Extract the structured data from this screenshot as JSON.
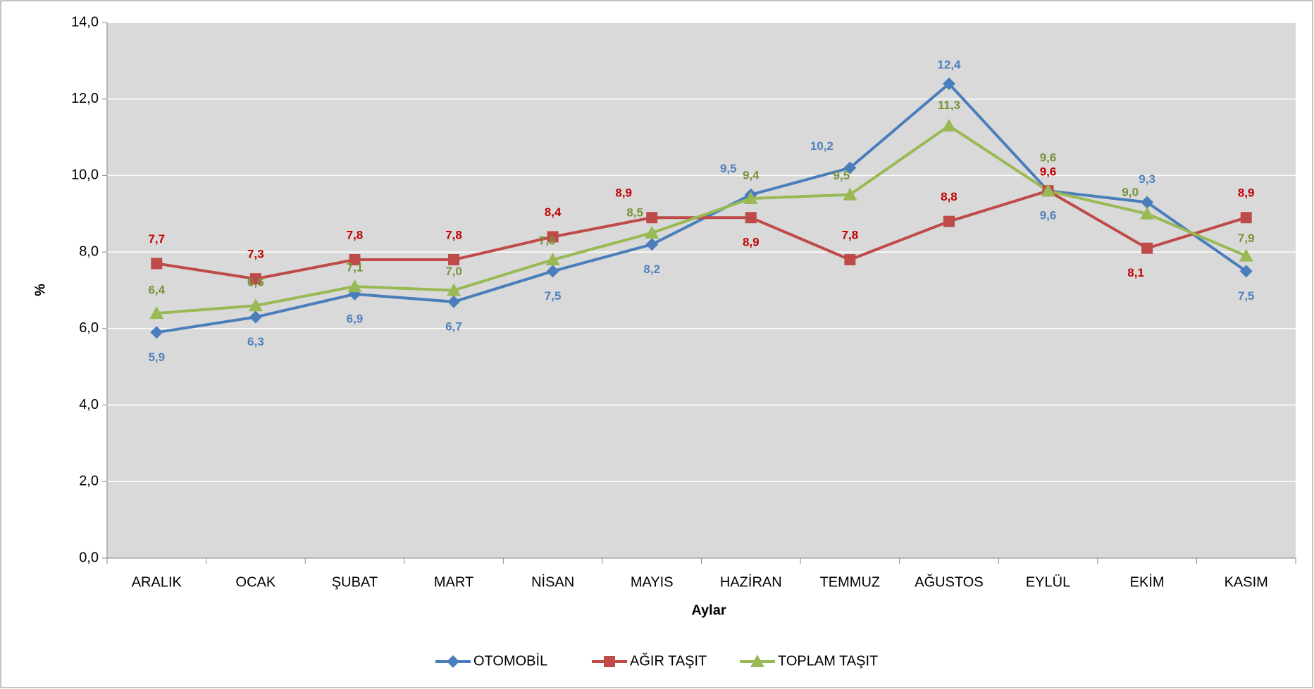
{
  "chart_data": {
    "type": "line",
    "x_label": "Aylar",
    "y_label": "%",
    "categories": [
      "ARALIK",
      "OCAK",
      "ŞUBAT",
      "MART",
      "NİSAN",
      "MAYIS",
      "HAZİRAN",
      "TEMMUZ",
      "AĞUSTOS",
      "EYLÜL",
      "EKİM",
      "KASIM"
    ],
    "series": [
      {
        "name": "OTOMOBİL",
        "color": "#4a7ebb",
        "label_color": "#4f81bd",
        "marker": "diamond",
        "values": [
          5.9,
          6.3,
          6.9,
          6.7,
          7.5,
          8.2,
          9.5,
          10.2,
          12.4,
          9.6,
          9.3,
          7.5
        ],
        "value_labels": [
          "5,9",
          "6,3",
          "6,9",
          "6,7",
          "7,5",
          "8,2",
          "9,5",
          "10,2",
          "12,4",
          "9,6",
          "9,3",
          "7,5"
        ]
      },
      {
        "name": "AĞIR TAŞIT",
        "color": "#be4b48",
        "label_color": "#c00000",
        "marker": "square",
        "values": [
          7.7,
          7.3,
          7.8,
          7.8,
          8.4,
          8.9,
          8.9,
          7.8,
          8.8,
          9.6,
          8.1,
          8.9
        ],
        "value_labels": [
          "7,7",
          "7,3",
          "7,8",
          "7,8",
          "8,4",
          "8,9",
          "8,9",
          "7,8",
          "8,8",
          "9,6",
          "8,1",
          "8,9"
        ]
      },
      {
        "name": "TOPLAM TAŞIT",
        "color": "#98b954",
        "label_color": "#77933c",
        "marker": "triangle",
        "values": [
          6.4,
          6.6,
          7.1,
          7.0,
          7.8,
          8.5,
          9.4,
          9.5,
          11.3,
          9.6,
          9.0,
          7.9
        ],
        "value_labels": [
          "6,4",
          "6,6",
          "7,1",
          "7,0",
          "7,8",
          "8,5",
          "9,4",
          "9,5",
          "11,3",
          "9,6",
          "9,0",
          "7,9"
        ]
      }
    ],
    "ylim": [
      0,
      14
    ],
    "yticks": [
      {
        "value": 0,
        "label": "0,0"
      },
      {
        "value": 2,
        "label": "2,0"
      },
      {
        "value": 4,
        "label": "4,0"
      },
      {
        "value": 6,
        "label": "6,0"
      },
      {
        "value": 8,
        "label": "8,0"
      },
      {
        "value": 10,
        "label": "10,0"
      },
      {
        "value": 12,
        "label": "12,0"
      },
      {
        "value": 14,
        "label": "14,0"
      }
    ],
    "grid": true,
    "legend": "bottom"
  }
}
